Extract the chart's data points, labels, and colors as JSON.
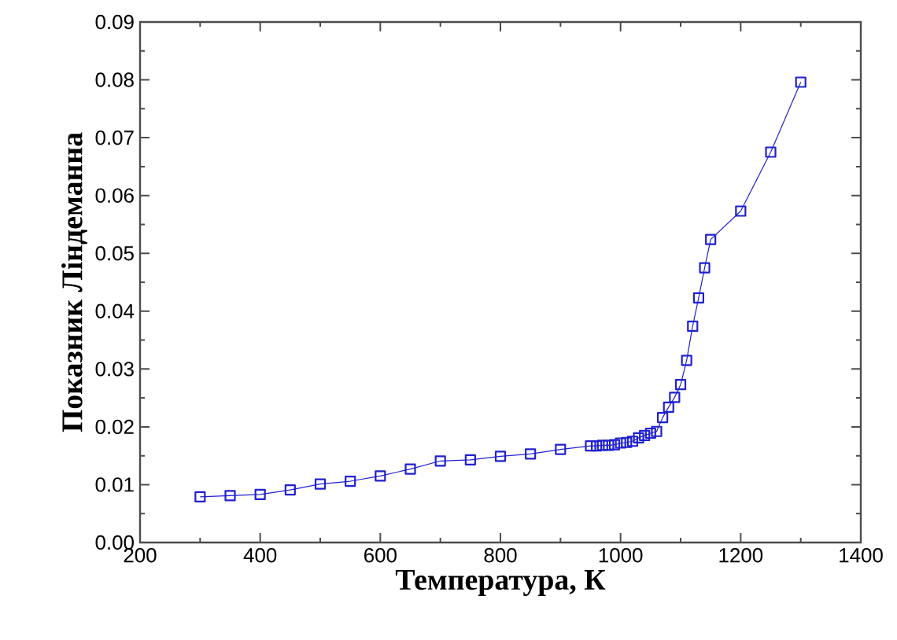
{
  "chart_data": {
    "type": "line",
    "xlabel": "Температура, К",
    "ylabel": "Показник Ліндеманна",
    "color": "#2020d0",
    "marker": "square",
    "line_style": "solid",
    "x": [
      300,
      350,
      400,
      450,
      500,
      550,
      600,
      650,
      700,
      750,
      800,
      850,
      900,
      950,
      960,
      970,
      980,
      990,
      1000,
      1010,
      1020,
      1030,
      1040,
      1050,
      1060,
      1070,
      1080,
      1090,
      1100,
      1110,
      1120,
      1130,
      1140,
      1150,
      1200,
      1250,
      1300
    ],
    "values": [
      0.0079,
      0.0081,
      0.0083,
      0.0091,
      0.0101,
      0.0106,
      0.0115,
      0.0127,
      0.0141,
      0.0143,
      0.0149,
      0.0153,
      0.0161,
      0.0167,
      0.0167,
      0.0168,
      0.0168,
      0.0169,
      0.0172,
      0.0173,
      0.0175,
      0.0181,
      0.0185,
      0.0189,
      0.0192,
      0.0216,
      0.0234,
      0.0251,
      0.0273,
      0.0315,
      0.0374,
      0.0423,
      0.0475,
      0.0524,
      0.0573,
      0.0675,
      0.0796
    ],
    "xlim": [
      200,
      1400
    ],
    "xticks": [
      200,
      400,
      600,
      800,
      1000,
      1200,
      1400
    ],
    "ylim": [
      0,
      0.09
    ],
    "yticks": [
      {
        "value": 0,
        "label": "0.00"
      },
      {
        "value": 0.01,
        "label": "0.01"
      },
      {
        "value": 0.02,
        "label": "0.02"
      },
      {
        "value": 0.03,
        "label": "0.03"
      },
      {
        "value": 0.04,
        "label": "0.04"
      },
      {
        "value": 0.05,
        "label": "0.05"
      },
      {
        "value": 0.06,
        "label": "0.06"
      },
      {
        "value": 0.07,
        "label": "0.07"
      },
      {
        "value": 0.08,
        "label": "0.08"
      },
      {
        "value": 0.09,
        "label": "0.09"
      }
    ]
  }
}
